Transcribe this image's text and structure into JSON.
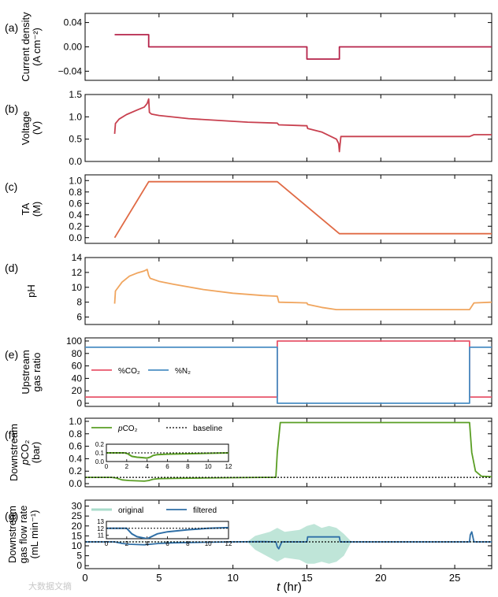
{
  "figure": {
    "xlabel": "t (hr)",
    "xlim": [
      0,
      27.5
    ],
    "xticks": [
      0,
      5,
      10,
      15,
      20,
      25
    ],
    "watermark": "大数据文摘",
    "colors": {
      "current": "#b5234a",
      "voltage": "#c8404f",
      "ta": "#e06a45",
      "ph": "#f0a55e",
      "co2": "#e8556a",
      "n2": "#4a8ec4",
      "pco2": "#5a9e24",
      "baseline": "#000000",
      "flow": "#2f6fa6",
      "flow_raw": "#a9dccb"
    }
  },
  "chart_data": [
    {
      "panel": "(a)",
      "type": "line",
      "ylabel": [
        "Current density",
        "(A cm⁻²)"
      ],
      "ylim": [
        -0.055,
        0.055
      ],
      "yticks": [
        -0.04,
        0.0,
        0.04
      ],
      "yticklabels": [
        "−0.04",
        "0.00",
        "0.04"
      ],
      "series": [
        {
          "color_key": "current",
          "x": [
            2,
            4.3,
            4.3,
            15,
            15,
            17.2,
            17.2,
            27.5
          ],
          "y": [
            0.02,
            0.02,
            0,
            0,
            -0.02,
            -0.02,
            0,
            0
          ]
        }
      ]
    },
    {
      "panel": "(b)",
      "type": "line",
      "ylabel": [
        "Voltage",
        "(V)"
      ],
      "ylim": [
        0,
        1.5
      ],
      "yticks": [
        0,
        0.5,
        1.0,
        1.5
      ],
      "yticklabels": [
        "0.0",
        "0.5",
        "1.0",
        "1.5"
      ],
      "series": [
        {
          "color_key": "voltage",
          "x": [
            2,
            2.05,
            2.3,
            2.8,
            3.5,
            4.0,
            4.2,
            4.3,
            4.35,
            4.5,
            5,
            7,
            9,
            11,
            13,
            13.1,
            15,
            15.05,
            16,
            17,
            17.15,
            17.2,
            17.3,
            26,
            26.3,
            27.5
          ],
          "y": [
            0.62,
            0.85,
            0.95,
            1.05,
            1.15,
            1.22,
            1.3,
            1.4,
            1.1,
            1.06,
            1.03,
            0.96,
            0.92,
            0.88,
            0.86,
            0.82,
            0.8,
            0.74,
            0.66,
            0.5,
            0.4,
            0.22,
            0.56,
            0.56,
            0.6,
            0.6
          ]
        }
      ]
    },
    {
      "panel": "(c)",
      "type": "line",
      "ylabel": [
        "TA",
        "(M)"
      ],
      "ylim": [
        -0.1,
        1.1
      ],
      "yticks": [
        0,
        0.2,
        0.4,
        0.6,
        0.8,
        1.0
      ],
      "yticklabels": [
        "0.0",
        "0.2",
        "0.4",
        "0.6",
        "0.8",
        "1.0"
      ],
      "series": [
        {
          "color_key": "ta",
          "x": [
            2,
            4.3,
            13,
            17.2,
            27.5
          ],
          "y": [
            0,
            0.98,
            0.98,
            0.07,
            0.07
          ]
        }
      ]
    },
    {
      "panel": "(d)",
      "type": "line",
      "ylabel": [
        "pH"
      ],
      "ylim": [
        5,
        14
      ],
      "yticks": [
        6,
        8,
        10,
        12,
        14
      ],
      "yticklabels": [
        "6",
        "8",
        "10",
        "12",
        "14"
      ],
      "series": [
        {
          "color_key": "ph",
          "x": [
            2,
            2.05,
            2.5,
            3,
            3.5,
            4.0,
            4.2,
            4.3,
            4.4,
            5,
            6,
            8,
            10,
            12,
            13,
            13.1,
            15,
            15.05,
            16,
            17,
            17.2,
            20,
            26,
            26.3,
            27.5
          ],
          "y": [
            7.8,
            9.5,
            10.7,
            11.5,
            11.9,
            12.2,
            12.4,
            11.6,
            11.2,
            10.8,
            10.4,
            9.7,
            9.2,
            8.9,
            8.8,
            8.0,
            7.9,
            7.7,
            7.3,
            7.0,
            7.0,
            7.0,
            7.0,
            7.9,
            8.0
          ]
        }
      ]
    },
    {
      "panel": "(e)",
      "type": "line",
      "ylabel": [
        "Upstream",
        "gas ratio"
      ],
      "ylim": [
        -5,
        105
      ],
      "yticks": [
        0,
        20,
        40,
        60,
        80,
        100
      ],
      "yticklabels": [
        "0",
        "20",
        "40",
        "60",
        "80",
        "100"
      ],
      "legend": {
        "placement": "middle-left",
        "entries": [
          "%CO₂",
          "%N₂"
        ]
      },
      "series": [
        {
          "name": "%CO₂",
          "color_key": "co2",
          "x": [
            0,
            13,
            13,
            26,
            26,
            27.5
          ],
          "y": [
            10,
            10,
            100,
            100,
            10,
            10
          ]
        },
        {
          "name": "%N₂",
          "color_key": "n2",
          "x": [
            0,
            13,
            13,
            26,
            26,
            27.5
          ],
          "y": [
            90,
            90,
            0,
            0,
            90,
            90
          ]
        }
      ]
    },
    {
      "panel": "(f)",
      "type": "line",
      "ylabel": [
        "Downstream",
        "pCO₂",
        "(bar)"
      ],
      "ylim": [
        -0.05,
        1.05
      ],
      "yticks": [
        0,
        0.2,
        0.4,
        0.6,
        0.8,
        1.0
      ],
      "yticklabels": [
        "0.0",
        "0.2",
        "0.4",
        "0.6",
        "0.8",
        "1.0"
      ],
      "legend": {
        "placement": "top-left",
        "entries": [
          "pCO₂",
          "baseline"
        ]
      },
      "series": [
        {
          "name": "pCO₂",
          "color_key": "pco2",
          "x": [
            0,
            1.8,
            2.1,
            2.5,
            3,
            3.5,
            4,
            4.3,
            4.6,
            5,
            6,
            8,
            10,
            12,
            12.9,
            13.0,
            13.2,
            26,
            26.15,
            26.4,
            26.8,
            27.5
          ],
          "y": [
            0.1,
            0.1,
            0.09,
            0.06,
            0.05,
            0.045,
            0.04,
            0.05,
            0.07,
            0.08,
            0.085,
            0.09,
            0.095,
            0.1,
            0.1,
            0.5,
            0.98,
            0.98,
            0.5,
            0.2,
            0.12,
            0.11
          ]
        },
        {
          "name": "baseline",
          "color_key": "baseline",
          "dash": true,
          "x": [
            0,
            27.5
          ],
          "y": [
            0.1,
            0.1
          ]
        }
      ],
      "inset": {
        "xlim": [
          0,
          12
        ],
        "ylim": [
          0,
          0.2
        ],
        "xticks": [
          0,
          2,
          4,
          6,
          8,
          10,
          12
        ],
        "yticks": [
          0,
          0.1,
          0.2
        ],
        "yticklabels": [
          "0.0",
          "0.1",
          "0.2"
        ],
        "series": [
          {
            "color_key": "pco2",
            "x": [
              0,
              1.8,
              2.1,
              2.5,
              3,
              3.5,
              4,
              4.3,
              4.6,
              5,
              6,
              8,
              10,
              12
            ],
            "y": [
              0.1,
              0.1,
              0.09,
              0.06,
              0.05,
              0.045,
              0.04,
              0.05,
              0.07,
              0.08,
              0.085,
              0.09,
              0.095,
              0.1
            ]
          },
          {
            "color_key": "baseline",
            "dash": true,
            "x": [
              0,
              12
            ],
            "y": [
              0.1,
              0.1
            ]
          }
        ]
      }
    },
    {
      "panel": "(g)",
      "type": "line",
      "ylabel": [
        "Downstream",
        "gas flow rate",
        "(mL min⁻¹)"
      ],
      "ylim": [
        -1.5,
        33
      ],
      "yticks": [
        0,
        5,
        10,
        15,
        20,
        25,
        30
      ],
      "yticklabels": [
        "0",
        "5",
        "10",
        "15",
        "20",
        "25",
        "30"
      ],
      "legend": {
        "placement": "top-left",
        "entries": [
          "original",
          "filtered"
        ]
      },
      "series": [
        {
          "name": "original",
          "color_key": "flow_raw",
          "band": true,
          "x": [
            0,
            11,
            11.5,
            12.5,
            13,
            13.5,
            14.5,
            15,
            15.5,
            16,
            16.5,
            17,
            17.5,
            18,
            27.5
          ],
          "y_low": [
            11.8,
            11.8,
            8,
            4,
            2,
            4,
            3,
            1,
            1,
            2,
            1,
            2,
            5,
            11.8,
            11.8
          ],
          "y_high": [
            12.2,
            12.2,
            15,
            17,
            19,
            17,
            18,
            20,
            21,
            19,
            20,
            19,
            16,
            12.2,
            12.2
          ]
        },
        {
          "name": "filtered",
          "color_key": "flow",
          "x": [
            0,
            2,
            2.5,
            3,
            4,
            5,
            6,
            8,
            10,
            12,
            12.9,
            13.0,
            13.1,
            13.3,
            15,
            15.05,
            17.2,
            17.25,
            26,
            26.05,
            26.15,
            26.3,
            27.5
          ],
          "y": [
            12,
            12,
            11.2,
            10.8,
            10.5,
            11.2,
            11.5,
            11.8,
            12,
            12.1,
            12,
            9.5,
            8.5,
            12,
            12,
            14.5,
            14.5,
            12,
            12,
            15.5,
            17,
            12,
            12
          ]
        },
        {
          "name": "baseline",
          "color_key": "baseline",
          "dash": true,
          "x": [
            0,
            27.5
          ],
          "y": [
            12,
            12
          ]
        }
      ],
      "inset": {
        "xlim": [
          0,
          12
        ],
        "ylim": [
          10.5,
          13
        ],
        "xticks": [
          0,
          2,
          4,
          6,
          8,
          10,
          12
        ],
        "yticks": [
          11,
          12,
          13
        ],
        "yticklabels": [
          "11",
          "12",
          "13"
        ],
        "series": [
          {
            "color_key": "flow",
            "x": [
              0,
              2,
              2.5,
              3,
              4,
              5,
              6,
              8,
              10,
              12
            ],
            "y": [
              12,
              12,
              11.2,
              10.8,
              10.5,
              11.2,
              11.5,
              11.8,
              12,
              12.1
            ]
          },
          {
            "color_key": "baseline",
            "dash": true,
            "x": [
              0,
              12
            ],
            "y": [
              12,
              12
            ]
          }
        ]
      }
    }
  ]
}
